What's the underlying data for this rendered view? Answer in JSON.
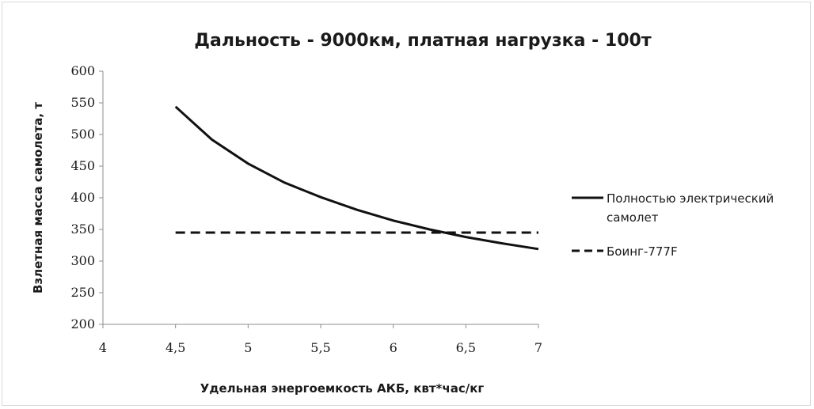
{
  "chart_data": {
    "type": "line",
    "title": "Дальность - 9000км, платная нагрузка - 100т",
    "xlabel": "Удельная энергоемкость АКБ, квт*час/кг",
    "ylabel": "Взлетная масса самолета, т",
    "xlim": [
      4,
      7
    ],
    "ylim": [
      200,
      600
    ],
    "x_ticks": [
      "4",
      "4,5",
      "5",
      "5,5",
      "6",
      "6,5",
      "7"
    ],
    "y_ticks": [
      "600",
      "550",
      "500",
      "450",
      "400",
      "350",
      "300",
      "250",
      "200"
    ],
    "legend_position": "right",
    "series": [
      {
        "name_lines": [
          "Полностью электрический",
          "самолет"
        ],
        "style": "solid",
        "x": [
          4.5,
          4.75,
          5.0,
          5.25,
          5.5,
          5.75,
          6.0,
          6.25,
          6.5,
          6.75,
          7.0
        ],
        "y": [
          544,
          492,
          454,
          424,
          401,
          381,
          364,
          350,
          338,
          328,
          319
        ]
      },
      {
        "name": "Боинг-777F",
        "style": "dashed",
        "x": [
          4.5,
          7.0
        ],
        "y": [
          345,
          345
        ]
      }
    ]
  }
}
